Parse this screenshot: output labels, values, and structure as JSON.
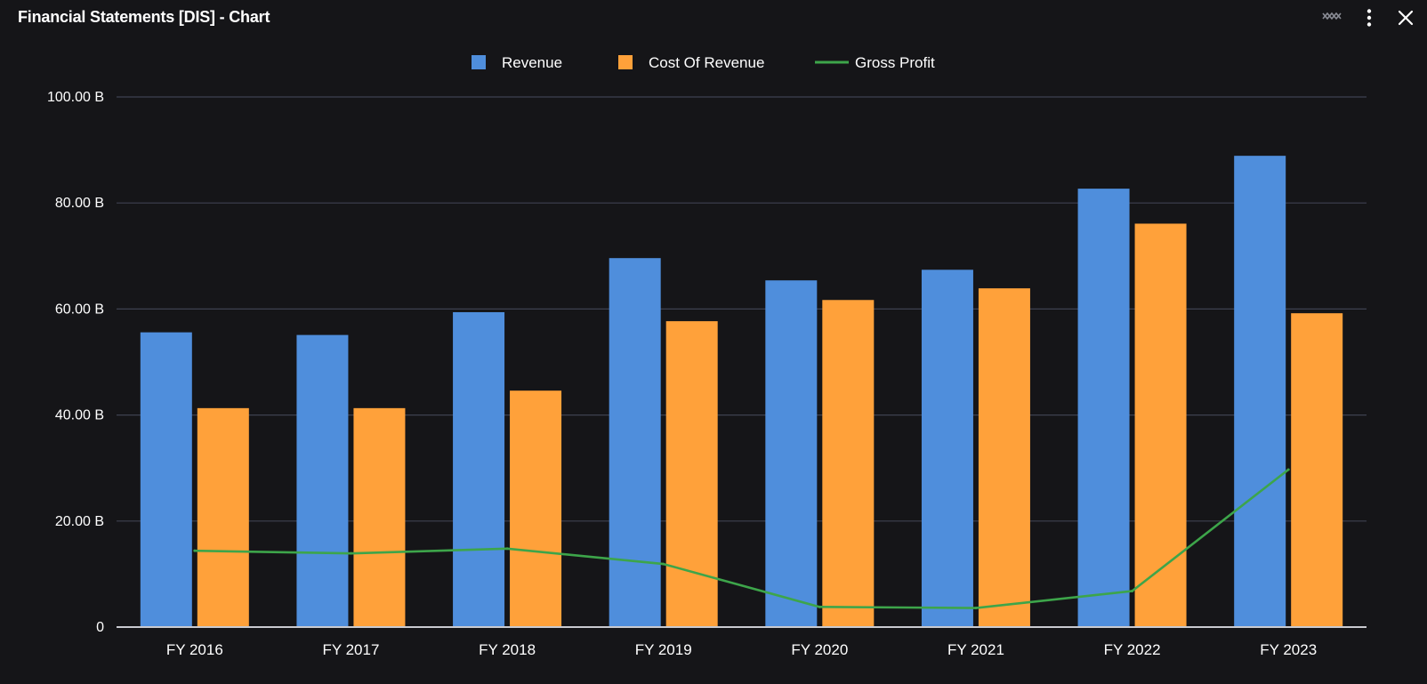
{
  "window": {
    "title": "Financial Statements [DIS] - Chart",
    "icons": [
      "chart-type-icon",
      "more-options-icon",
      "close-icon"
    ]
  },
  "chart_data": {
    "type": "bar",
    "categories": [
      "FY 2016",
      "FY 2017",
      "FY 2018",
      "FY 2019",
      "FY 2020",
      "FY 2021",
      "FY 2022",
      "FY 2023"
    ],
    "series": [
      {
        "name": "Revenue",
        "kind": "bar",
        "color": "#4F8EDC",
        "values": [
          55.6,
          55.1,
          59.4,
          69.6,
          65.4,
          67.4,
          82.7,
          88.9
        ]
      },
      {
        "name": "Cost Of Revenue",
        "kind": "bar",
        "color": "#FFA13A",
        "values": [
          41.3,
          41.3,
          44.6,
          57.7,
          61.7,
          63.9,
          76.1,
          59.2
        ]
      },
      {
        "name": "Gross Profit",
        "kind": "line",
        "color": "#3DA54A",
        "values": [
          14.4,
          13.9,
          14.8,
          11.9,
          3.8,
          3.6,
          6.8,
          29.7
        ]
      }
    ],
    "y_ticks": [
      {
        "value": 0,
        "label": "0"
      },
      {
        "value": 20,
        "label": "20.00 B"
      },
      {
        "value": 40,
        "label": "40.00 B"
      },
      {
        "value": 60,
        "label": "60.00 B"
      },
      {
        "value": 80,
        "label": "80.00 B"
      },
      {
        "value": 100,
        "label": "100.00 B"
      }
    ],
    "ylim": [
      0,
      100
    ],
    "grid": true,
    "legend_position": "top-center",
    "colors": {
      "gridline": "#3E4150",
      "axis": "#C9CAD0",
      "text": "#FFFFFF"
    }
  }
}
